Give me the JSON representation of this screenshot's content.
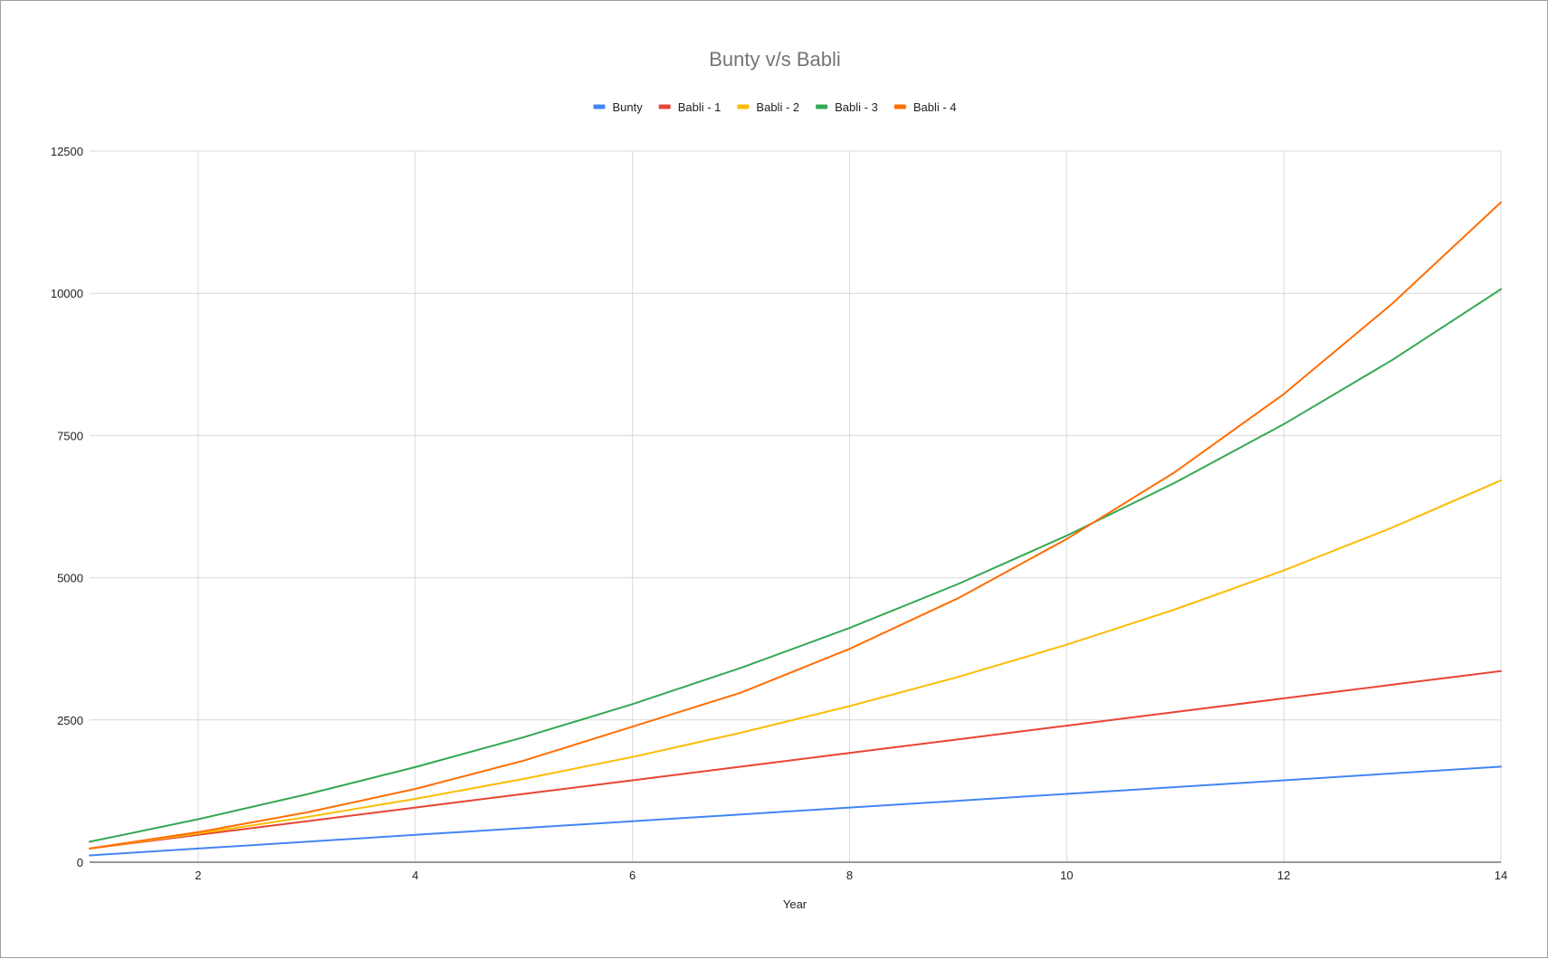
{
  "chart_data": {
    "type": "line",
    "title": "Bunty v/s Babli",
    "xlabel": "Year",
    "ylabel": "",
    "xlim": [
      1,
      14
    ],
    "ylim": [
      0,
      12500
    ],
    "x_ticks": [
      2,
      4,
      6,
      8,
      10,
      12,
      14
    ],
    "y_ticks": [
      0,
      2500,
      5000,
      7500,
      10000,
      12500
    ],
    "grid": true,
    "legend_position": "top",
    "x": [
      1,
      2,
      3,
      4,
      5,
      6,
      7,
      8,
      9,
      10,
      11,
      12,
      13,
      14
    ],
    "series": [
      {
        "name": "Bunty",
        "color": "#4285f4",
        "values": [
          120,
          240,
          360,
          480,
          600,
          720,
          840,
          960,
          1080,
          1200,
          1320,
          1440,
          1560,
          1680
        ]
      },
      {
        "name": "Babli - 1",
        "color": "#ea4335",
        "values": [
          240,
          480,
          720,
          960,
          1200,
          1440,
          1680,
          1920,
          2160,
          2400,
          2640,
          2880,
          3120,
          3360
        ]
      },
      {
        "name": "Babli - 2",
        "color": "#fbbc04",
        "values": [
          240,
          504,
          794,
          1113,
          1464,
          1850,
          2275,
          2743,
          3257,
          3823,
          4445,
          5130,
          5883,
          6711
        ]
      },
      {
        "name": "Babli - 3",
        "color": "#34a853",
        "values": [
          360,
          756,
          1192,
          1671,
          2198,
          2778,
          3416,
          4118,
          4890,
          5739,
          6673,
          7700,
          8830,
          10073
        ]
      },
      {
        "name": "Babli - 4",
        "color": "#ff6d01",
        "values": [
          240,
          528,
          874,
          1288,
          1786,
          2383,
          2980,
          3750,
          4640,
          5680,
          6860,
          8230,
          9820,
          11600
        ]
      }
    ]
  }
}
